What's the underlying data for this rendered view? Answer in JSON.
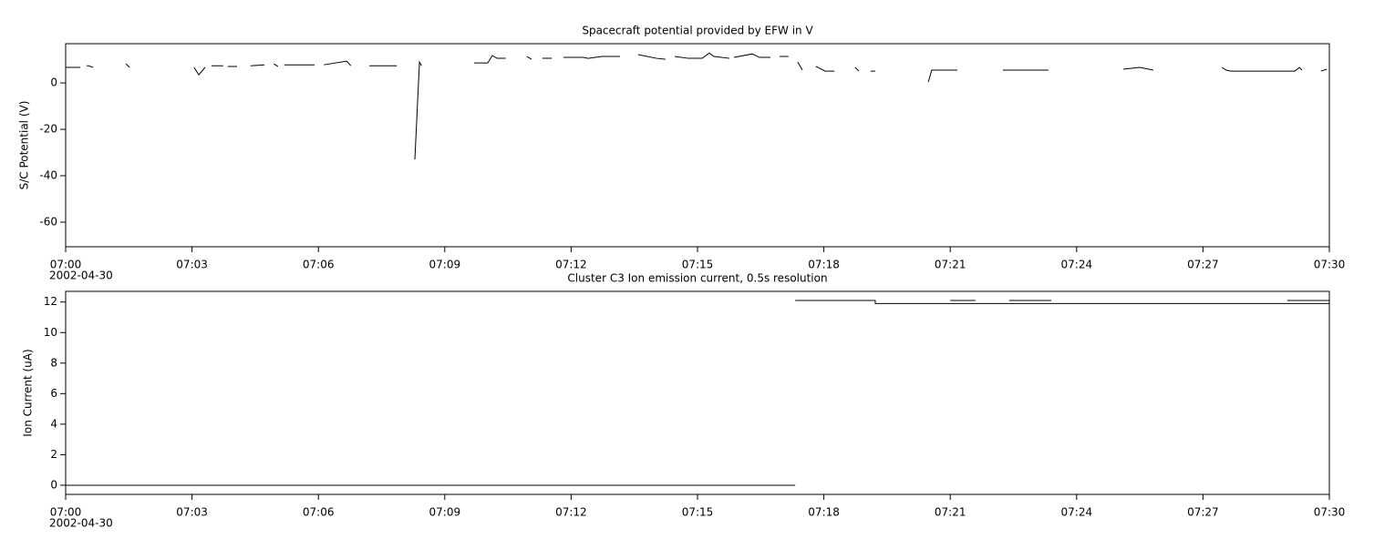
{
  "chart_data": [
    {
      "type": "line",
      "title": "Spacecraft potential provided by EFW in V",
      "ylabel": "S/C Potential (V)",
      "date_label": "2002-04-30",
      "xlim": [
        420,
        450
      ],
      "xticks": [
        {
          "value": 420,
          "label": "07:00"
        },
        {
          "value": 423,
          "label": "07:03"
        },
        {
          "value": 426,
          "label": "07:06"
        },
        {
          "value": 429,
          "label": "07:09"
        },
        {
          "value": 432,
          "label": "07:12"
        },
        {
          "value": 435,
          "label": "07:15"
        },
        {
          "value": 438,
          "label": "07:18"
        },
        {
          "value": 441,
          "label": "07:21"
        },
        {
          "value": 444,
          "label": "07:24"
        },
        {
          "value": 447,
          "label": "07:27"
        },
        {
          "value": 450,
          "label": "07:30"
        }
      ],
      "ylim": [
        -70.6,
        16.9
      ],
      "yticks": [
        -60,
        -40,
        -20,
        0
      ],
      "color": "#000000",
      "x": [
        420,
        420.35,
        null,
        420.5,
        420.54,
        420.65,
        null,
        421.43,
        421.52,
        null,
        423.05,
        423.16,
        423.31,
        null,
        423.46,
        423.74,
        null,
        423.85,
        424.07,
        null,
        424.39,
        424.72,
        null,
        424.94,
        425.04,
        null,
        425.19,
        425.91,
        null,
        426.13,
        426.67,
        426.77,
        null,
        427.21,
        427.86,
        null,
        428.29,
        428.4,
        428.45,
        null,
        429.7,
        430.02,
        430.13,
        430.24,
        430.45,
        null,
        430.95,
        431.06,
        null,
        431.32,
        431.54,
        null,
        431.82,
        432.29,
        432.4,
        432.73,
        433.16,
        null,
        433.59,
        434.03,
        434.24,
        null,
        434.46,
        434.78,
        435.11,
        435.28,
        435.39,
        435.76,
        null,
        435.87,
        436.3,
        436.47,
        436.73,
        null,
        436.95,
        437.16,
        null,
        437.38,
        437.49,
        null,
        437.81,
        438.03,
        438.25,
        null,
        438.74,
        438.83,
        null,
        439.11,
        439.22,
        null,
        440.48,
        440.56,
        441.17,
        null,
        442.25,
        443.33,
        null,
        445.11,
        445.5,
        445.82,
        null,
        447.45,
        447.55,
        447.66,
        449.18,
        449.29,
        449.35,
        null,
        449.8,
        449.94
      ],
      "values": [
        6.7,
        6.7,
        null,
        7.4,
        7.4,
        6.7,
        null,
        8.2,
        6.7,
        null,
        6.7,
        3.5,
        6.7,
        null,
        7.4,
        7.4,
        null,
        7.1,
        7.1,
        null,
        7.4,
        7.8,
        null,
        8.2,
        7.1,
        null,
        7.8,
        7.8,
        null,
        7.8,
        9.4,
        7.4,
        null,
        7.4,
        7.4,
        null,
        -33,
        9.0,
        7.4,
        null,
        8.6,
        8.6,
        11.8,
        10.6,
        10.6,
        null,
        11.4,
        10.2,
        null,
        10.6,
        10.6,
        null,
        11.0,
        11.0,
        10.6,
        11.4,
        11.4,
        null,
        12.2,
        10.6,
        10.2,
        null,
        11.4,
        10.6,
        10.6,
        12.9,
        11.4,
        10.6,
        null,
        11.0,
        12.5,
        11.0,
        11.0,
        null,
        11.4,
        11.4,
        null,
        9.0,
        5.5,
        null,
        7.1,
        5.1,
        5.1,
        null,
        6.7,
        5.1,
        null,
        5.1,
        5.1,
        null,
        0.4,
        5.5,
        5.5,
        null,
        5.5,
        5.5,
        null,
        5.9,
        6.7,
        5.5,
        null,
        6.7,
        5.5,
        5.1,
        5.1,
        6.7,
        5.5,
        null,
        5.1,
        5.9
      ]
    },
    {
      "type": "line",
      "title": "Cluster C3 Ion emission current, 0.5s resolution",
      "ylabel": "Ion Current (uA)",
      "date_label": "2002-04-30",
      "xlim": [
        420,
        450
      ],
      "xticks": [
        {
          "value": 420,
          "label": "07:00"
        },
        {
          "value": 423,
          "label": "07:03"
        },
        {
          "value": 426,
          "label": "07:06"
        },
        {
          "value": 429,
          "label": "07:09"
        },
        {
          "value": 432,
          "label": "07:12"
        },
        {
          "value": 435,
          "label": "07:15"
        },
        {
          "value": 438,
          "label": "07:18"
        },
        {
          "value": 441,
          "label": "07:21"
        },
        {
          "value": 444,
          "label": "07:24"
        },
        {
          "value": 447,
          "label": "07:27"
        },
        {
          "value": 450,
          "label": "07:30"
        }
      ],
      "ylim": [
        -0.6,
        12.7
      ],
      "yticks": [
        0,
        2,
        4,
        6,
        8,
        10,
        12
      ],
      "color": "#000000",
      "x": [
        420,
        437.32,
        null,
        437.32,
        439.22,
        439.22,
        450,
        null,
        441.0,
        441.6,
        null,
        442.4,
        443.4,
        null,
        449.0,
        450
      ],
      "values": [
        0,
        0,
        null,
        12.1,
        12.1,
        11.9,
        11.9,
        null,
        12.1,
        12.1,
        null,
        12.1,
        12.1,
        null,
        12.1,
        12.1
      ]
    }
  ]
}
